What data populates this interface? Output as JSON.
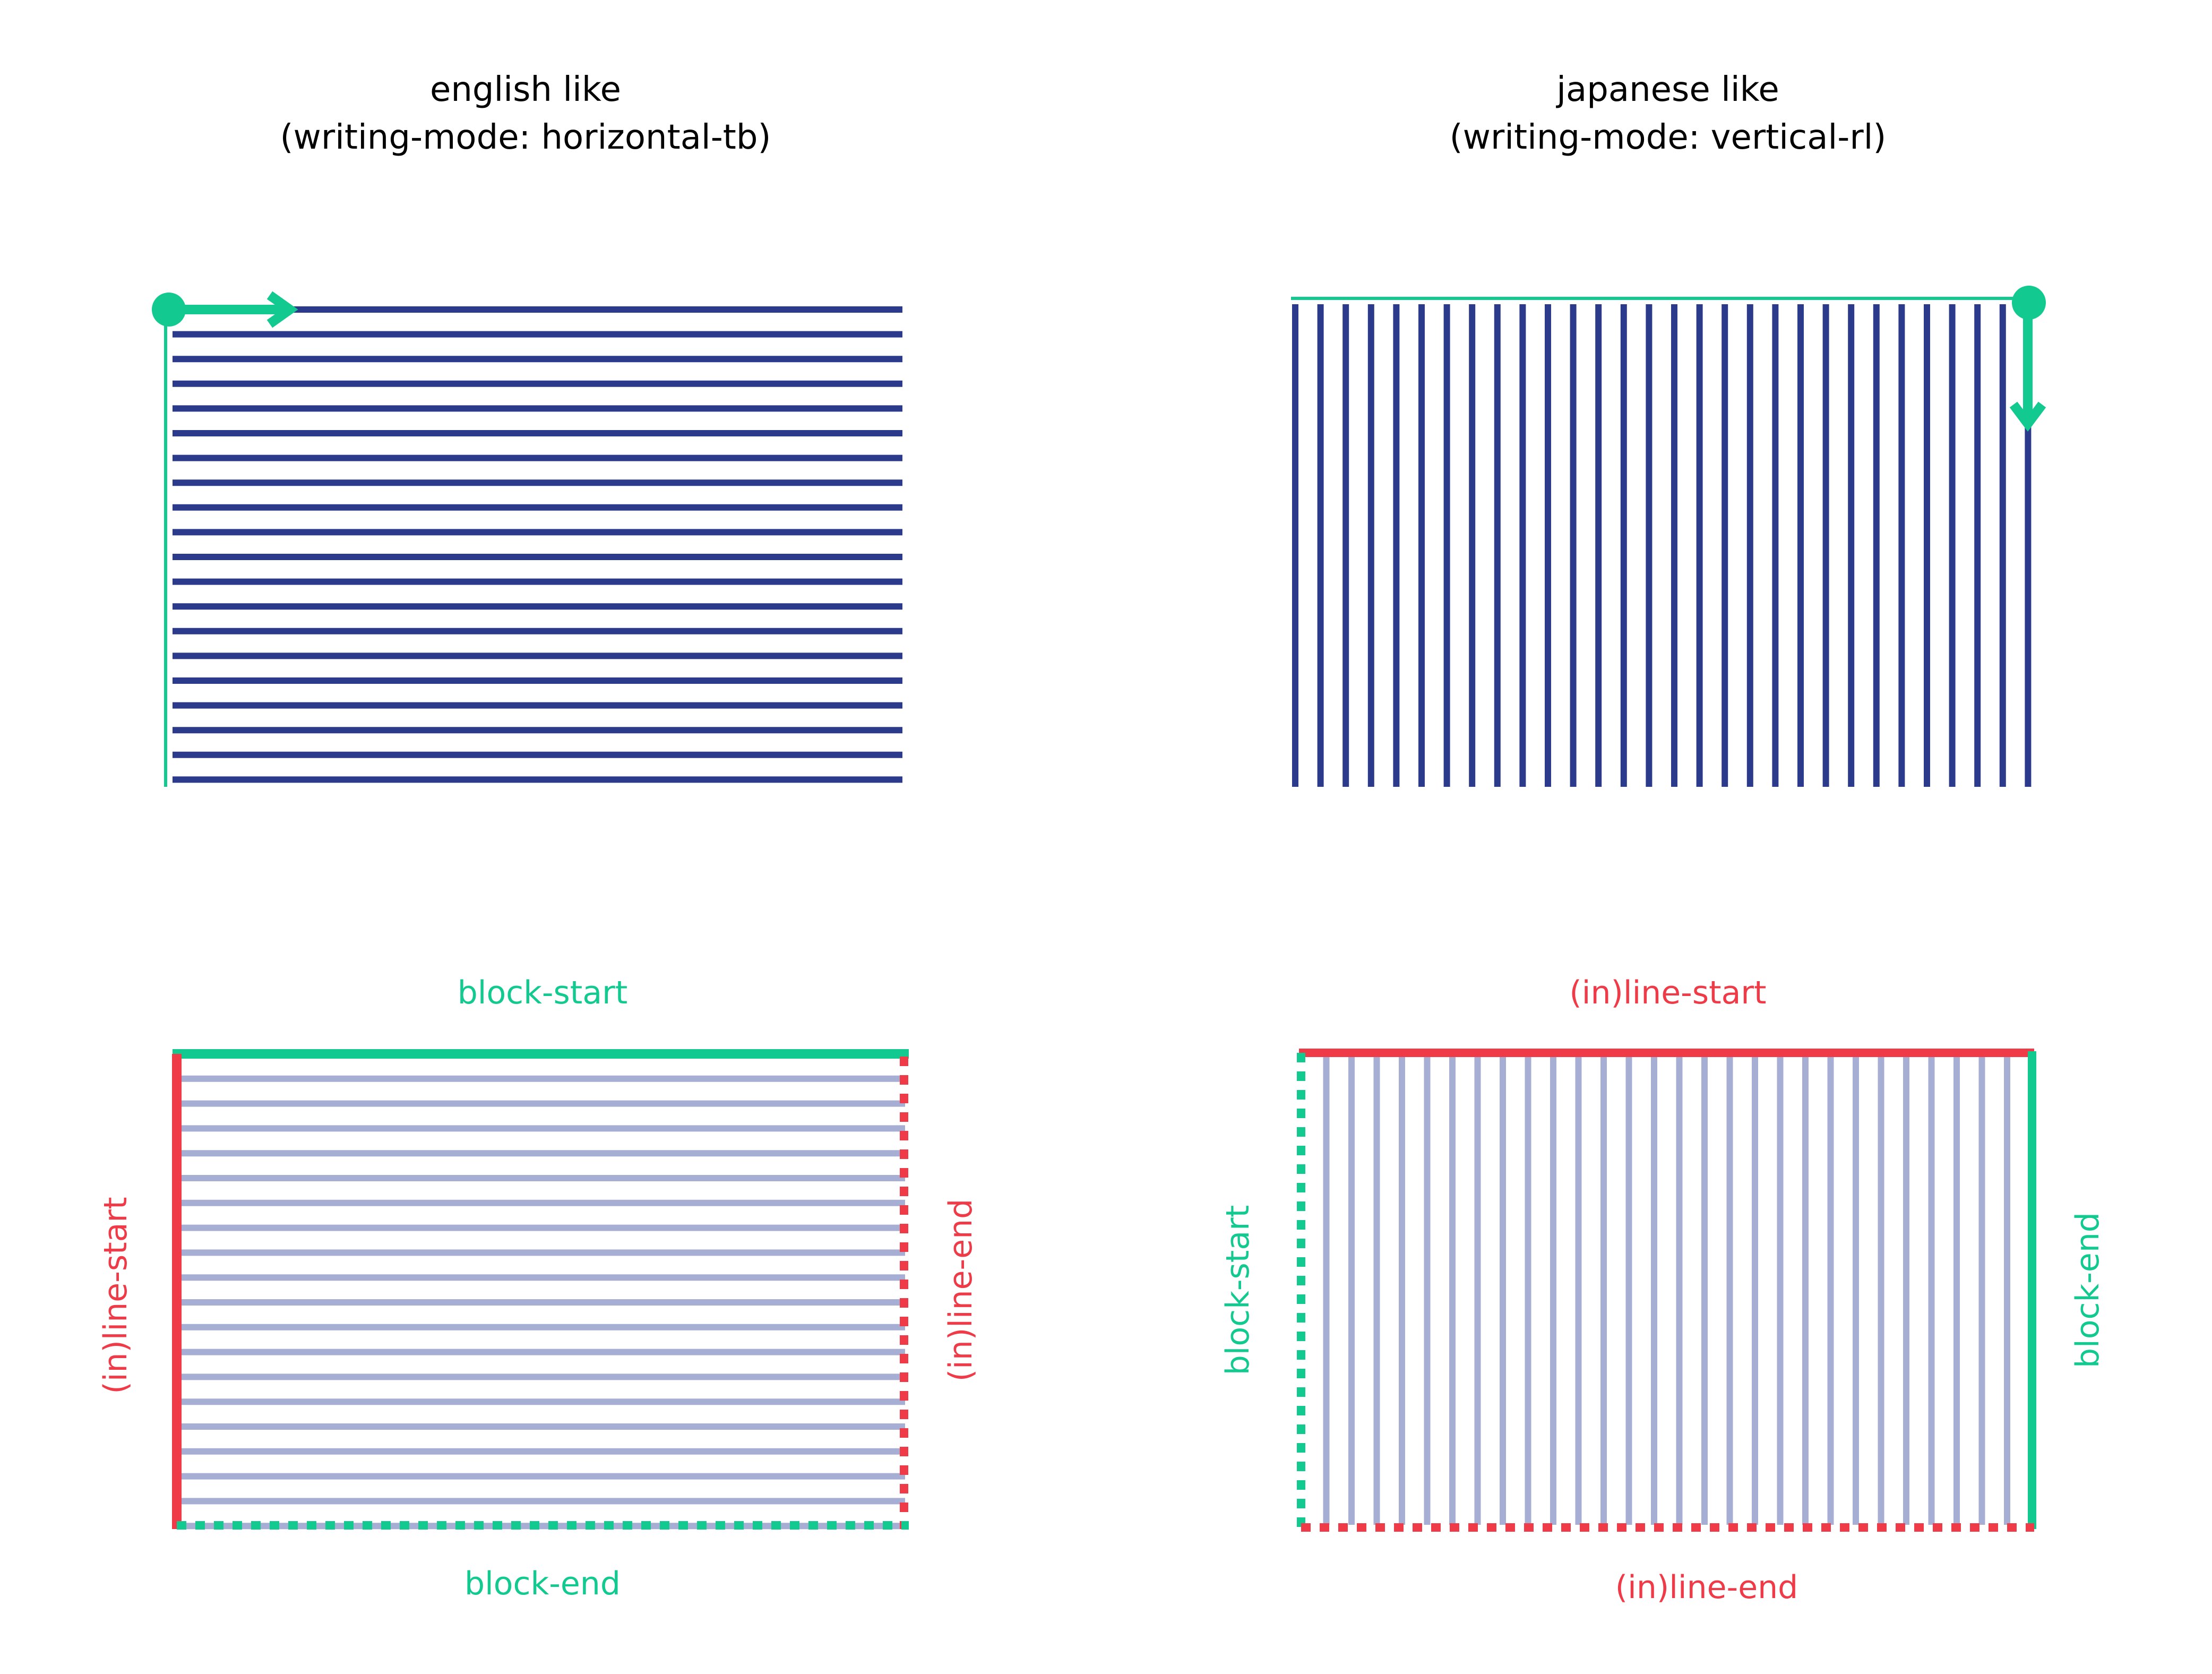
{
  "colors": {
    "navy": "#2b3a8a",
    "navy_light": "#a7aed4",
    "green": "#12c98f",
    "red": "#ef3b48",
    "text": "#000000",
    "background": "#ffffff"
  },
  "panels": {
    "english": {
      "title_line1": "english like",
      "title_line2": "(writing-mode: horizontal-tb)",
      "line_count": 20,
      "line_direction": "horizontal",
      "flow_direction": "right",
      "origin_corner": "top-left"
    },
    "japanese": {
      "title_line1": "japanese like",
      "title_line2": "(writing-mode: vertical-rl)",
      "line_count": 30,
      "line_direction": "vertical",
      "flow_direction": "down",
      "origin_corner": "top-right"
    }
  },
  "labels": {
    "english": {
      "block_start": "block-start",
      "block_end": "block-end",
      "inline_start": "(in)line-start",
      "inline_end": "(in)line-end"
    },
    "japanese": {
      "block_start": "block-start",
      "block_end": "block-end",
      "inline_start": "(in)line-start",
      "inline_end": "(in)line-end"
    }
  }
}
